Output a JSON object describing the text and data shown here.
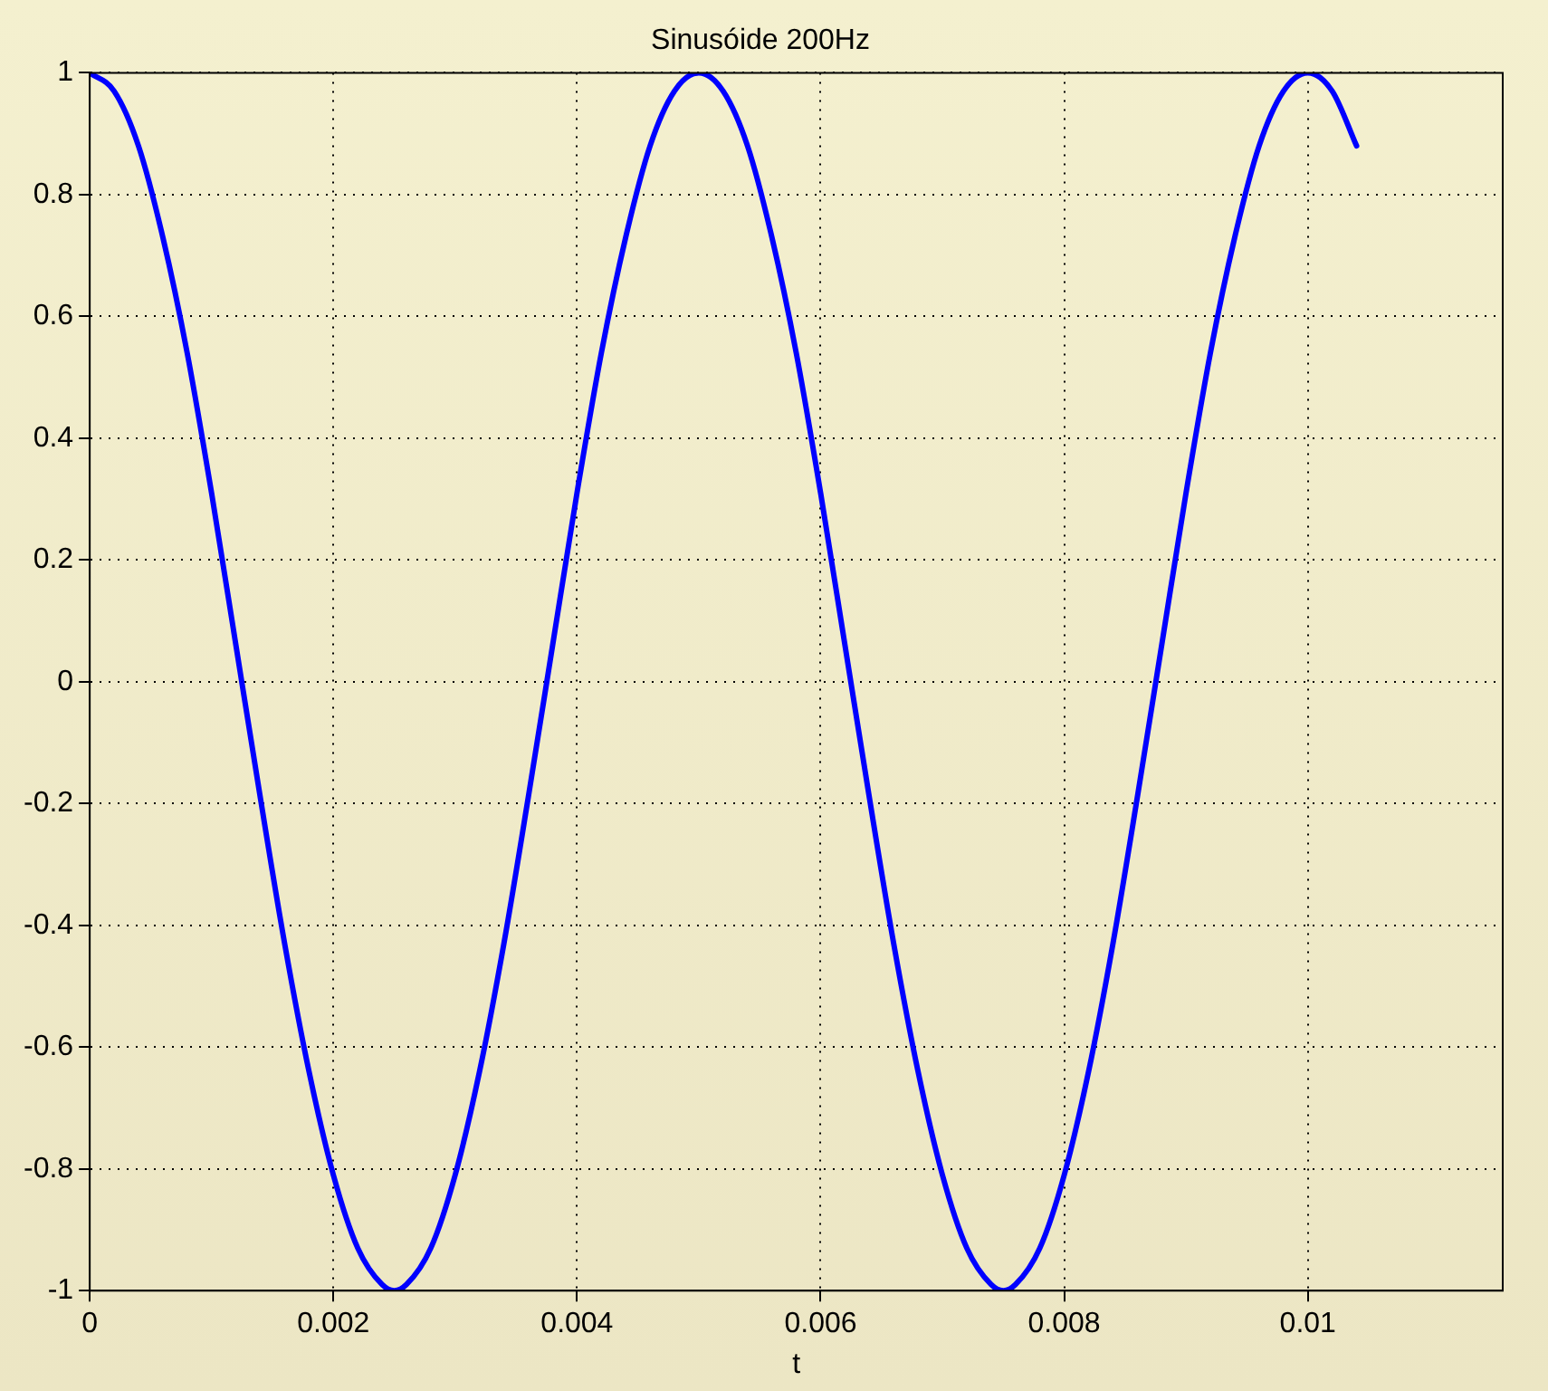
{
  "chart_data": {
    "type": "line",
    "title": "Sinusóide 200Hz",
    "xlabel": "t",
    "xlim": [
      0,
      0.0116
    ],
    "xticks": [
      0,
      0.002,
      0.004,
      0.006,
      0.008,
      0.01
    ],
    "ylim": [
      -1,
      1
    ],
    "yticks": [
      -1,
      -0.8,
      -0.6,
      -0.4,
      -0.2,
      0,
      0.2,
      0.4,
      0.6,
      0.8,
      1
    ],
    "grid": true,
    "legend": false,
    "marker": "none",
    "line_style": "solid",
    "series": [
      {
        "color": "#0000ff",
        "x": [
          0,
          0.0002,
          0.0004,
          0.0006,
          0.0008,
          0.001,
          0.0012,
          0.0014,
          0.0016,
          0.0018,
          0.002,
          0.0022,
          0.0024,
          0.0025,
          0.0026,
          0.0028,
          0.003,
          0.0032,
          0.0034,
          0.0036,
          0.0038,
          0.004,
          0.0042,
          0.0044,
          0.0046,
          0.0048,
          0.005,
          0.0052,
          0.0054,
          0.0056,
          0.0058,
          0.006,
          0.0062,
          0.0064,
          0.0066,
          0.0068,
          0.007,
          0.0072,
          0.0074,
          0.0075,
          0.0076,
          0.0078,
          0.008,
          0.0082,
          0.0084,
          0.0086,
          0.0088,
          0.009,
          0.0092,
          0.0094,
          0.0096,
          0.0098,
          0.01,
          0.0102,
          0.0104
        ],
        "values": [
          1,
          0.97,
          0.88,
          0.73,
          0.54,
          0.31,
          0.06,
          -0.19,
          -0.43,
          -0.64,
          -0.81,
          -0.93,
          -0.99,
          -1,
          -0.99,
          -0.93,
          -0.81,
          -0.64,
          -0.43,
          -0.19,
          0.06,
          0.31,
          0.54,
          0.73,
          0.88,
          0.97,
          1,
          0.97,
          0.88,
          0.73,
          0.54,
          0.31,
          0.06,
          -0.19,
          -0.43,
          -0.64,
          -0.81,
          -0.93,
          -0.99,
          -1,
          -0.99,
          -0.93,
          -0.81,
          -0.64,
          -0.43,
          -0.19,
          0.06,
          0.31,
          0.54,
          0.73,
          0.88,
          0.97,
          1,
          0.97,
          0.88
        ]
      }
    ]
  }
}
